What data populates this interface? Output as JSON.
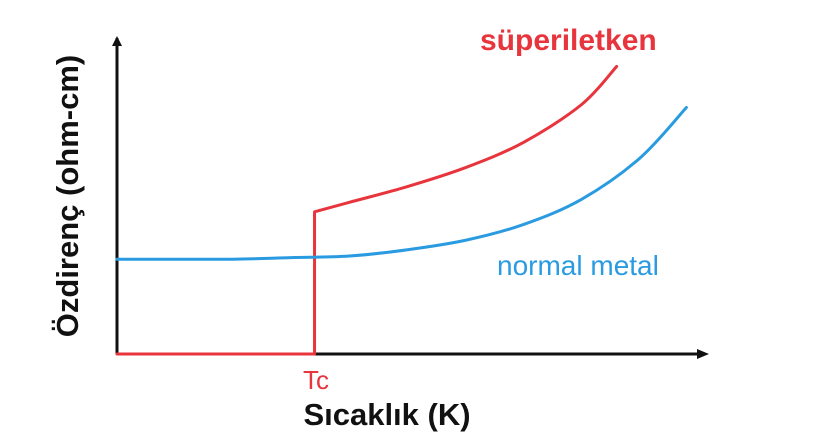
{
  "chart_data": {
    "type": "line",
    "xlabel": "Sıcaklık (K)",
    "ylabel": "Özdirenç (ohm-cm)",
    "xlim": [
      0,
      100
    ],
    "ylim": [
      0,
      100
    ],
    "tc_label": "Tc",
    "tc_value": 34,
    "grid": false,
    "legend": "none",
    "series": [
      {
        "name": "süperiletken",
        "color": "#e8343c",
        "points": [
          [
            0,
            0
          ],
          [
            34,
            0
          ],
          [
            34,
            45
          ],
          [
            40,
            48
          ],
          [
            50,
            53
          ],
          [
            60,
            59
          ],
          [
            70,
            67
          ],
          [
            80,
            79
          ],
          [
            86,
            91
          ]
        ]
      },
      {
        "name": "normal metal",
        "color": "#2a9be0",
        "points": [
          [
            0,
            30
          ],
          [
            10,
            30
          ],
          [
            20,
            30
          ],
          [
            30,
            30.5
          ],
          [
            40,
            31
          ],
          [
            50,
            33
          ],
          [
            60,
            36
          ],
          [
            70,
            41
          ],
          [
            80,
            49
          ],
          [
            90,
            62
          ],
          [
            98,
            78
          ]
        ]
      }
    ]
  }
}
